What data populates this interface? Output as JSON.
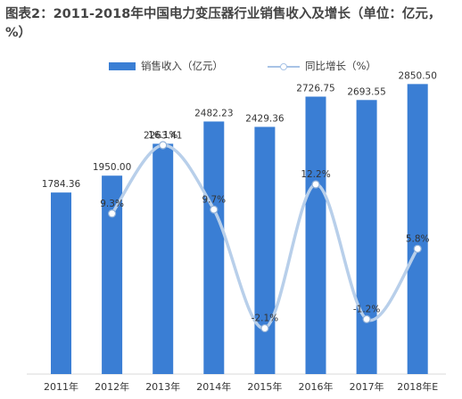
{
  "title": "图表2：2011-2018年中国电力变压器行业销售收入及增长（单位：亿元，%）",
  "legend": {
    "bar_label": "销售收入（亿元）",
    "line_label": "同比增长（%）"
  },
  "colors": {
    "bar": "#3a7ed4",
    "line": "#b8cfea",
    "marker_fill": "#ffffff",
    "marker_stroke": "#8fb0d8",
    "text": "#333333"
  },
  "chart_data": {
    "type": "bar",
    "categories": [
      "2011年",
      "2012年",
      "2013年",
      "2014年",
      "2015年",
      "2016年",
      "2017年",
      "2018年E"
    ],
    "series": [
      {
        "name": "销售收入（亿元）",
        "type": "bar",
        "values": [
          1784.36,
          1950.0,
          2263.41,
          2482.23,
          2429.36,
          2726.75,
          2693.55,
          2850.5
        ],
        "labels": [
          "1784.36",
          "1950.00",
          "2263.41",
          "2482.23",
          "2429.36",
          "2726.75",
          "2693.55",
          "2850.50"
        ]
      },
      {
        "name": "同比增长（%）",
        "type": "line",
        "values": [
          null,
          9.3,
          16.1,
          9.7,
          -2.1,
          12.2,
          -1.2,
          5.8
        ],
        "labels": [
          "",
          "9.3%",
          "16.1%",
          "9.7%",
          "-2.1%",
          "12.2%",
          "-1.2%",
          "5.8%"
        ]
      }
    ],
    "bar_axis_range": [
      0,
      3000
    ],
    "line_axis_range": [
      -4,
      20
    ],
    "grid": false,
    "legend_position": "top"
  }
}
